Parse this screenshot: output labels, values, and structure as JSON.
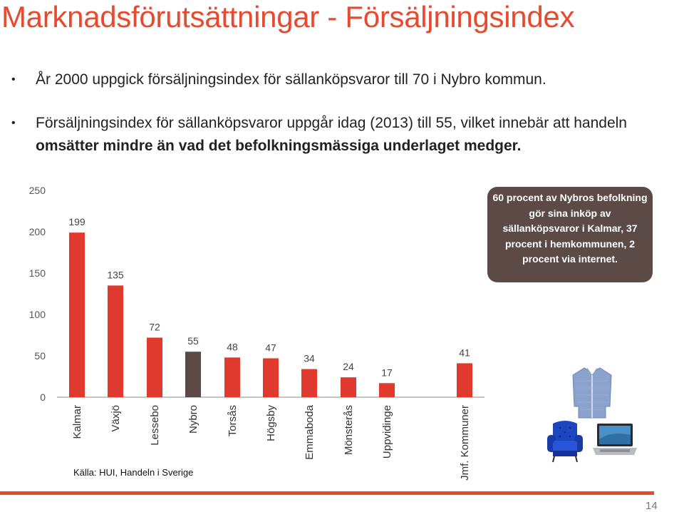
{
  "slide": {
    "title": "Marknadsförutsättningar - Försäljningsindex",
    "bullet1": "År 2000 uppgick försäljningsindex för sällanköpsvaror till 70 i Nybro kommun.",
    "bullet2_plain": "Försäljningsindex för sällanköpsvaror uppgår idag (2013) till 55, vilket innebär att handeln ",
    "bullet2_bold": "omsätter mindre än vad det befolkningsmässiga underlaget medger.",
    "callout": "60 procent av Nybros befolkning gör sina inköp av sällanköpsvaror i Kalmar, 37 procent i hemkommunen, 2 procent via internet.",
    "source": "Källa: HUI, Handeln i Sverige",
    "page_number": "14"
  },
  "chart_data": {
    "type": "bar",
    "categories": [
      "Kalmar",
      "Växjö",
      "Lessebo",
      "Nybro",
      "Torsås",
      "Högsby",
      "Emmaboda",
      "Mönsterås",
      "Uppvidinge",
      "Jmf. Kommuner"
    ],
    "values": [
      199,
      135,
      72,
      55,
      48,
      47,
      34,
      24,
      17,
      41
    ],
    "ylim": [
      0,
      250
    ],
    "yticks": [
      0,
      50,
      100,
      150,
      200,
      250
    ],
    "colors": {
      "default": "#e03a2e",
      "highlight": "#5b4a46",
      "highlight_category": "Nybro",
      "title": "#e84a2f"
    },
    "grid": false
  },
  "icons": {
    "shirt": "shirt-icon",
    "chair": "armchair-icon",
    "laptop": "laptop-icon"
  }
}
